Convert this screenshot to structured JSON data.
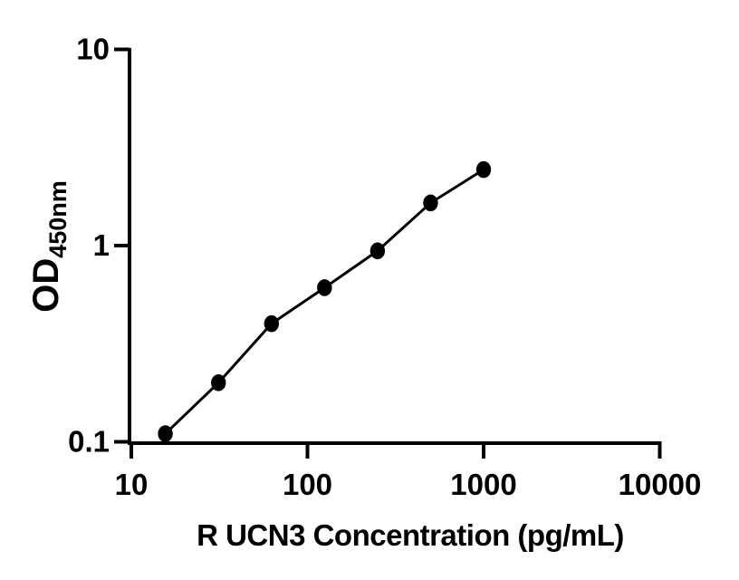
{
  "figure": {
    "background": "#ffffff",
    "foreground": "#000000"
  },
  "chart_data": {
    "type": "scatter",
    "subtype": "elisa-standard-curve",
    "title": "",
    "xlabel": "R UCN3 Concentration (pg/mL)",
    "ylabel": "OD",
    "ylabel_sub": "450nm",
    "x": [
      15.6,
      31.25,
      62.5,
      125,
      250,
      500,
      1000
    ],
    "y": [
      0.11,
      0.2,
      0.4,
      0.61,
      0.94,
      1.65,
      2.44
    ],
    "x_scale": "log",
    "y_scale": "log",
    "xlim": [
      10,
      10000
    ],
    "ylim": [
      0.1,
      10
    ],
    "x_ticks": [
      10,
      100,
      1000,
      10000
    ],
    "x_tick_labels": [
      "10",
      "100",
      "1000",
      "10000"
    ],
    "y_ticks": [
      0.1,
      1,
      10
    ],
    "y_tick_labels": [
      "0.1",
      "1",
      "10"
    ],
    "grid": false,
    "legend": null,
    "marker": {
      "shape": "ellipse",
      "color": "#000000"
    },
    "line": {
      "color": "#000000",
      "width": 3
    },
    "axis_color": "#000000"
  }
}
